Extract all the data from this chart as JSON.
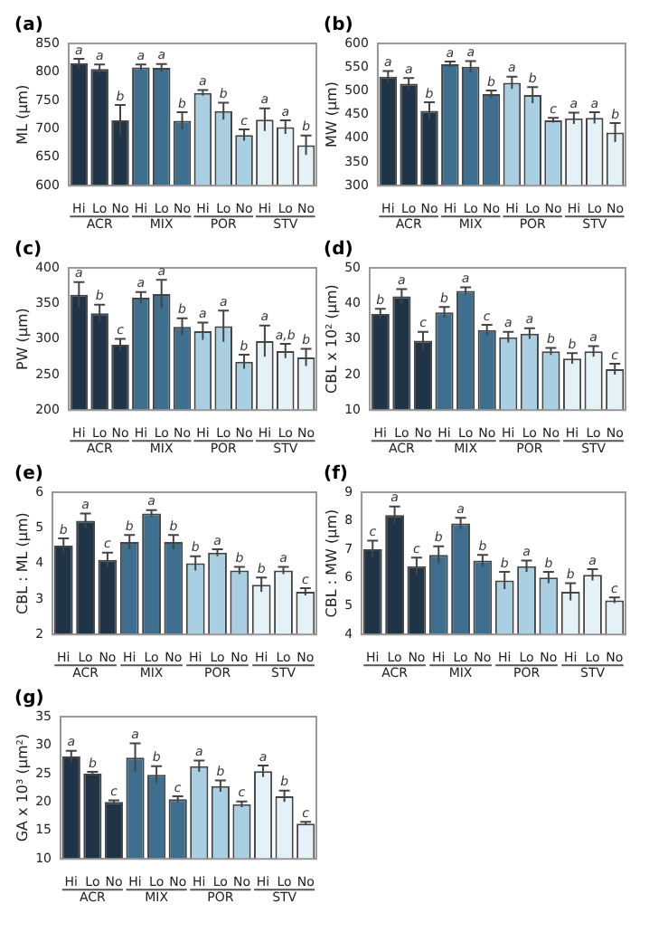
{
  "chart_data": [
    {
      "type": "bar",
      "title": "(a)",
      "ylabel": "ML (µm)",
      "categories": [
        "Hi",
        "Lo",
        "No",
        "Hi",
        "Lo",
        "No",
        "Hi",
        "Lo",
        "No",
        "Hi",
        "Lo",
        "No"
      ],
      "values": [
        815,
        805,
        715,
        808,
        807,
        714,
        763,
        731,
        689,
        716,
        703,
        671
      ],
      "errors": [
        8,
        8,
        27,
        5,
        7,
        15,
        5,
        15,
        10,
        20,
        12,
        17
      ],
      "value_labels": [
        "a",
        "a",
        "b",
        "a",
        "a",
        "b",
        "a",
        "b",
        "c",
        "a",
        "a",
        "b"
      ],
      "colors": [
        "#1f3547",
        "#1f3547",
        "#1f3547",
        "#3f6f8f",
        "#3f6f8f",
        "#3f6f8f",
        "#a8cfe2",
        "#a8cfe2",
        "#a8cfe2",
        "#e4f1f6",
        "#e4f1f6",
        "#e4f1f6"
      ],
      "ylim": [
        600,
        850
      ],
      "yticks": [
        600,
        650,
        700,
        750,
        800,
        850
      ],
      "annotations": [
        "ACR",
        "MIX",
        "POR",
        "STV"
      ]
    },
    {
      "type": "bar",
      "title": "(b)",
      "ylabel": "MW (µm)",
      "categories": [
        "Hi",
        "Lo",
        "No",
        "Hi",
        "Lo",
        "No",
        "Hi",
        "Lo",
        "No",
        "Hi",
        "Lo",
        "No"
      ],
      "values": [
        530,
        515,
        458,
        556,
        551,
        493,
        517,
        491,
        438,
        442,
        443,
        412
      ],
      "errors": [
        12,
        12,
        18,
        6,
        12,
        8,
        13,
        17,
        5,
        12,
        12,
        20
      ],
      "value_labels": [
        "a",
        "a",
        "b",
        "a",
        "a",
        "b",
        "a",
        "b",
        "c",
        "a",
        "a",
        "b"
      ],
      "colors": [
        "#1f3547",
        "#1f3547",
        "#1f3547",
        "#3f6f8f",
        "#3f6f8f",
        "#3f6f8f",
        "#a8cfe2",
        "#a8cfe2",
        "#a8cfe2",
        "#e4f1f6",
        "#e4f1f6",
        "#e4f1f6"
      ],
      "ylim": [
        300,
        600
      ],
      "yticks": [
        300,
        350,
        400,
        450,
        500,
        550,
        600
      ],
      "annotations": [
        "ACR",
        "MIX",
        "POR",
        "STV"
      ]
    },
    {
      "type": "bar",
      "title": "(c)",
      "ylabel": "PW (µm)",
      "categories": [
        "Hi",
        "Lo",
        "No",
        "Hi",
        "Lo",
        "No",
        "Hi",
        "Lo",
        "No",
        "Hi",
        "Lo",
        "No"
      ],
      "values": [
        362,
        336,
        292,
        358,
        363,
        317,
        311,
        318,
        268,
        297,
        283,
        274
      ],
      "errors": [
        18,
        12,
        8,
        8,
        20,
        12,
        12,
        22,
        10,
        22,
        10,
        12
      ],
      "value_labels": [
        "a",
        "b",
        "c",
        "a",
        "a",
        "b",
        "a",
        "a",
        "b",
        "a",
        "a,b",
        "b"
      ],
      "colors": [
        "#1f3547",
        "#1f3547",
        "#1f3547",
        "#3f6f8f",
        "#3f6f8f",
        "#3f6f8f",
        "#a8cfe2",
        "#a8cfe2",
        "#a8cfe2",
        "#e4f1f6",
        "#e4f1f6",
        "#e4f1f6"
      ],
      "ylim": [
        200,
        400
      ],
      "yticks": [
        200,
        250,
        300,
        350,
        400
      ],
      "annotations": [
        "ACR",
        "MIX",
        "POR",
        "STV"
      ]
    },
    {
      "type": "bar",
      "title": "(d)",
      "ylabel": "CBL x 10² (µm)",
      "categories": [
        "Hi",
        "Lo",
        "No",
        "Hi",
        "Lo",
        "No",
        "Hi",
        "Lo",
        "No",
        "Hi",
        "Lo",
        "No"
      ],
      "values": [
        37,
        42,
        29.5,
        37.5,
        43.5,
        32.5,
        30.5,
        31.5,
        26.5,
        24.5,
        26.5,
        21.5
      ],
      "errors": [
        1.5,
        2,
        2.5,
        1.5,
        1,
        1.5,
        1.5,
        1.5,
        1,
        1.5,
        1.5,
        1.5
      ],
      "value_labels": [
        "b",
        "a",
        "c",
        "b",
        "a",
        "c",
        "a",
        "a",
        "b",
        "b",
        "a",
        "c"
      ],
      "colors": [
        "#1f3547",
        "#1f3547",
        "#1f3547",
        "#3f6f8f",
        "#3f6f8f",
        "#3f6f8f",
        "#a8cfe2",
        "#a8cfe2",
        "#a8cfe2",
        "#e4f1f6",
        "#e4f1f6",
        "#e4f1f6"
      ],
      "ylim": [
        10,
        50
      ],
      "yticks": [
        10,
        20,
        30,
        40,
        50
      ],
      "annotations": [
        "ACR",
        "MIX",
        "POR",
        "STV"
      ]
    },
    {
      "type": "bar",
      "title": "(e)",
      "ylabel": "CBL : ML (µm)",
      "categories": [
        "Hi",
        "Lo",
        "No",
        "Hi",
        "Lo",
        "No",
        "Hi",
        "Lo",
        "No",
        "Hi",
        "Lo",
        "No"
      ],
      "values": [
        4.5,
        5.2,
        4.1,
        4.6,
        5.4,
        4.6,
        4.0,
        4.3,
        3.8,
        3.4,
        3.8,
        3.2
      ],
      "errors": [
        0.2,
        0.2,
        0.2,
        0.2,
        0.1,
        0.2,
        0.2,
        0.1,
        0.1,
        0.2,
        0.1,
        0.1
      ],
      "value_labels": [
        "b",
        "a",
        "c",
        "b",
        "a",
        "b",
        "b",
        "a",
        "b",
        "b",
        "a",
        "c"
      ],
      "colors": [
        "#1f3547",
        "#1f3547",
        "#1f3547",
        "#3f6f8f",
        "#3f6f8f",
        "#3f6f8f",
        "#a8cfe2",
        "#a8cfe2",
        "#a8cfe2",
        "#e4f1f6",
        "#e4f1f6",
        "#e4f1f6"
      ],
      "ylim": [
        2,
        6
      ],
      "yticks": [
        2,
        3,
        4,
        5,
        6
      ],
      "annotations": [
        "ACR",
        "MIX",
        "POR",
        "STV"
      ]
    },
    {
      "type": "bar",
      "title": "(f)",
      "ylabel": "CBL : MW (µm)",
      "categories": [
        "Hi",
        "Lo",
        "No",
        "Hi",
        "Lo",
        "No",
        "Hi",
        "Lo",
        "No",
        "Hi",
        "Lo",
        "No"
      ],
      "values": [
        7.0,
        8.2,
        6.4,
        6.8,
        7.9,
        6.6,
        5.9,
        6.4,
        6.0,
        5.5,
        6.1,
        5.2
      ],
      "errors": [
        0.3,
        0.3,
        0.3,
        0.3,
        0.2,
        0.2,
        0.3,
        0.2,
        0.2,
        0.3,
        0.2,
        0.1
      ],
      "value_labels": [
        "c",
        "a",
        "c",
        "b",
        "a",
        "b",
        "b",
        "a",
        "b",
        "b",
        "a",
        "c"
      ],
      "colors": [
        "#1f3547",
        "#1f3547",
        "#1f3547",
        "#3f6f8f",
        "#3f6f8f",
        "#3f6f8f",
        "#a8cfe2",
        "#a8cfe2",
        "#a8cfe2",
        "#e4f1f6",
        "#e4f1f6",
        "#e4f1f6"
      ],
      "ylim": [
        4,
        9
      ],
      "yticks": [
        4,
        5,
        6,
        7,
        8,
        9
      ],
      "annotations": [
        "ACR",
        "MIX",
        "POR",
        "STV"
      ]
    },
    {
      "type": "bar",
      "title": "(g)",
      "ylabel": "GA x 10³ (µm²)",
      "categories": [
        "Hi",
        "Lo",
        "No",
        "Hi",
        "Lo",
        "No",
        "Hi",
        "Lo",
        "No",
        "Hi",
        "Lo",
        "No"
      ],
      "values": [
        28,
        25,
        20,
        27.8,
        24.8,
        20.5,
        26.3,
        22.8,
        19.6,
        25.4,
        21,
        16.2
      ],
      "errors": [
        1,
        0.3,
        0.3,
        2.5,
        1.5,
        0.5,
        1,
        1,
        0.5,
        1,
        1,
        0.3
      ],
      "value_labels": [
        "a",
        "b",
        "c",
        "a",
        "b",
        "c",
        "a",
        "b",
        "c",
        "a",
        "b",
        "c"
      ],
      "colors": [
        "#1f3547",
        "#1f3547",
        "#1f3547",
        "#3f6f8f",
        "#3f6f8f",
        "#3f6f8f",
        "#a8cfe2",
        "#a8cfe2",
        "#a8cfe2",
        "#e4f1f6",
        "#e4f1f6",
        "#e4f1f6"
      ],
      "ylim": [
        10,
        35
      ],
      "yticks": [
        10,
        15,
        20,
        25,
        30,
        35
      ],
      "annotations": [
        "ACR",
        "MIX",
        "POR",
        "STV"
      ]
    }
  ]
}
